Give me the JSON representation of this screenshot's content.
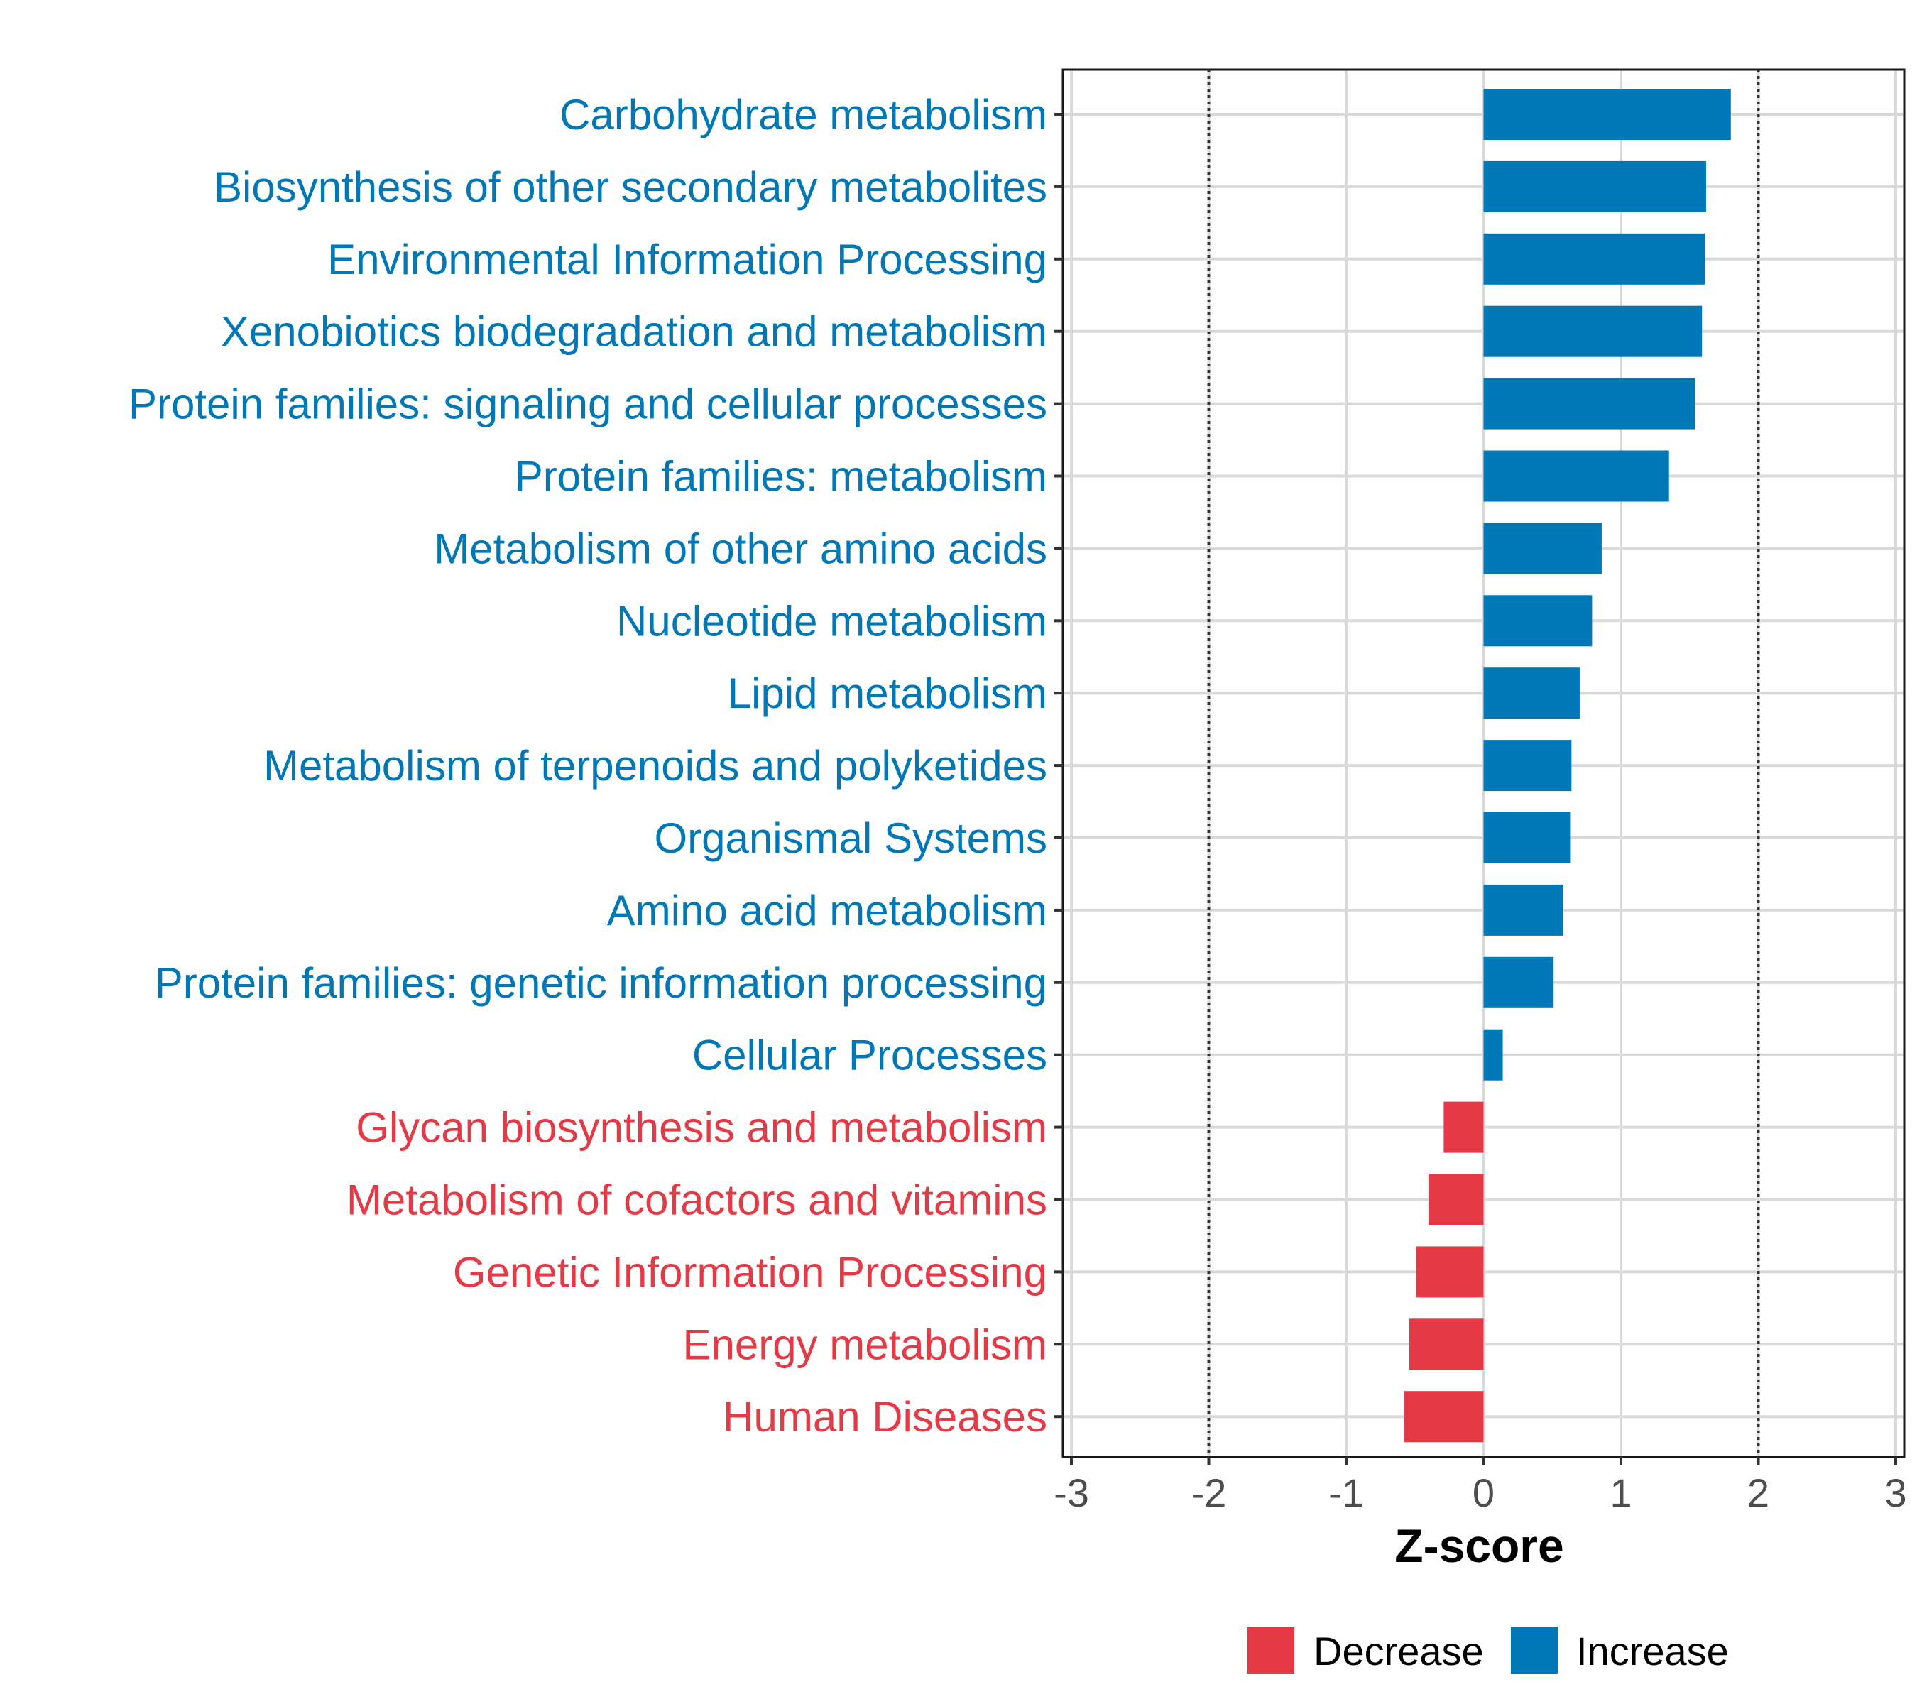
{
  "chart_data": {
    "type": "bar",
    "orientation": "horizontal",
    "title": "",
    "xlabel": "Z-score",
    "ylabel": "",
    "xlim": [
      -3,
      3
    ],
    "xticks": [
      -3,
      -2,
      -1,
      0,
      1,
      2,
      3
    ],
    "xtick_labels": [
      "-3",
      "-2",
      "-1",
      "0",
      "1",
      "2",
      "3"
    ],
    "reference_lines": [
      -2,
      2
    ],
    "grid": true,
    "legend_position": "bottom",
    "colors": {
      "Decrease": "#e63946",
      "Increase": "#0077b6"
    },
    "legend": [
      {
        "name": "Decrease",
        "color": "#e63946"
      },
      {
        "name": "Increase",
        "color": "#0077b6"
      }
    ],
    "categories": [
      "Carbohydrate metabolism",
      "Biosynthesis of other secondary metabolites",
      "Environmental Information Processing",
      "Xenobiotics biodegradation and metabolism",
      "Protein families: signaling and cellular processes",
      "Protein families: metabolism",
      "Metabolism of other amino acids",
      "Nucleotide metabolism",
      "Lipid metabolism",
      "Metabolism of terpenoids and polyketides",
      "Organismal Systems",
      "Amino acid metabolism",
      "Protein families: genetic information processing",
      "Cellular Processes",
      "Glycan biosynthesis and metabolism",
      "Metabolism of cofactors and vitamins",
      "Genetic Information Processing",
      "Energy metabolism",
      "Human Diseases"
    ],
    "values": [
      1.8,
      1.62,
      1.61,
      1.59,
      1.54,
      1.35,
      0.86,
      0.79,
      0.7,
      0.64,
      0.63,
      0.58,
      0.51,
      0.14,
      -0.29,
      -0.4,
      -0.49,
      -0.54,
      -0.58
    ],
    "groups": [
      "Increase",
      "Increase",
      "Increase",
      "Increase",
      "Increase",
      "Increase",
      "Increase",
      "Increase",
      "Increase",
      "Increase",
      "Increase",
      "Increase",
      "Increase",
      "Increase",
      "Decrease",
      "Decrease",
      "Decrease",
      "Decrease",
      "Decrease"
    ]
  }
}
